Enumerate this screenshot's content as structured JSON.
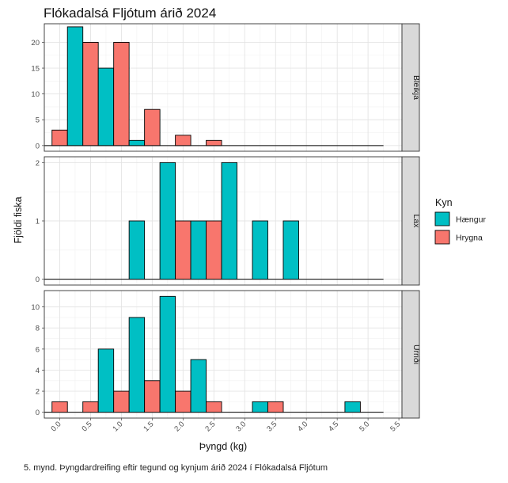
{
  "chart_data": {
    "type": "bar",
    "title": "Flókadalsá Fljótum árið 2024",
    "xlabel": "Þyngd (kg)",
    "ylabel": "Fjöldi fiska",
    "xlim": [
      -0.25,
      5.55
    ],
    "x_ticks": [
      "0.0",
      "0.5",
      "1.0",
      "1.5",
      "2.0",
      "2.5",
      "3.0",
      "3.5",
      "4.0",
      "4.5",
      "5.0",
      "5.5"
    ],
    "bin_width": 0.25,
    "legend": {
      "title": "Kyn",
      "position": "right",
      "entries": [
        {
          "name": "Hængur",
          "color": "#00bfc4"
        },
        {
          "name": "Hrygna",
          "color": "#f8766d"
        }
      ]
    },
    "grid": true,
    "facets": [
      {
        "label": "Bleikja",
        "ylim": [
          -1.1,
          23.6
        ],
        "y_ticks": [
          0,
          5,
          10,
          15,
          20
        ],
        "baseline_x": [
          -0.25,
          5.25
        ],
        "bins": [
          {
            "x": 0.0,
            "series": "Hrygna",
            "value": 3
          },
          {
            "x": 0.25,
            "series": "Hængur",
            "value": 23
          },
          {
            "x": 0.5,
            "series": "Hrygna",
            "value": 20
          },
          {
            "x": 0.75,
            "series": "Hængur",
            "value": 15
          },
          {
            "x": 1.0,
            "series": "Hrygna",
            "value": 20
          },
          {
            "x": 1.25,
            "series": "Hængur",
            "value": 1
          },
          {
            "x": 1.5,
            "series": "Hrygna",
            "value": 7
          },
          {
            "x": 2.0,
            "series": "Hrygna",
            "value": 2
          },
          {
            "x": 2.5,
            "series": "Hrygna",
            "value": 1
          }
        ]
      },
      {
        "label": "Lax",
        "ylim": [
          -0.1,
          2.1
        ],
        "y_ticks": [
          0,
          1,
          2
        ],
        "baseline_x": [
          -0.25,
          5.25
        ],
        "bins": [
          {
            "x": 1.25,
            "series": "Hængur",
            "value": 1
          },
          {
            "x": 1.75,
            "series": "Hængur",
            "value": 2
          },
          {
            "x": 2.0,
            "series": "Hrygna",
            "value": 1
          },
          {
            "x": 2.25,
            "series": "Hængur",
            "value": 1
          },
          {
            "x": 2.5,
            "series": "Hrygna",
            "value": 1
          },
          {
            "x": 2.75,
            "series": "Hængur",
            "value": 2
          },
          {
            "x": 3.25,
            "series": "Hængur",
            "value": 1
          },
          {
            "x": 3.75,
            "series": "Hængur",
            "value": 1
          }
        ]
      },
      {
        "label": "Urriði",
        "ylim": [
          -0.55,
          11.55
        ],
        "y_ticks": [
          0,
          2,
          4,
          6,
          8,
          10
        ],
        "baseline_x": [
          -0.25,
          5.25
        ],
        "bins": [
          {
            "x": 0.0,
            "series": "Hrygna",
            "value": 1
          },
          {
            "x": 0.5,
            "series": "Hrygna",
            "value": 1
          },
          {
            "x": 0.75,
            "series": "Hængur",
            "value": 6
          },
          {
            "x": 1.0,
            "series": "Hrygna",
            "value": 2
          },
          {
            "x": 1.25,
            "series": "Hængur",
            "value": 9
          },
          {
            "x": 1.5,
            "series": "Hrygna",
            "value": 3
          },
          {
            "x": 1.75,
            "series": "Hængur",
            "value": 11
          },
          {
            "x": 2.0,
            "series": "Hrygna",
            "value": 2
          },
          {
            "x": 2.25,
            "series": "Hængur",
            "value": 5
          },
          {
            "x": 2.5,
            "series": "Hrygna",
            "value": 1
          },
          {
            "x": 3.25,
            "series": "Hængur",
            "value": 1
          },
          {
            "x": 3.5,
            "series": "Hrygna",
            "value": 1
          },
          {
            "x": 4.75,
            "series": "Hængur",
            "value": 1
          }
        ]
      }
    ]
  },
  "caption": "5. mynd. Þyngdardreifing eftir tegund og kynjum árið 2024 í Flókadalsá Fljótum"
}
